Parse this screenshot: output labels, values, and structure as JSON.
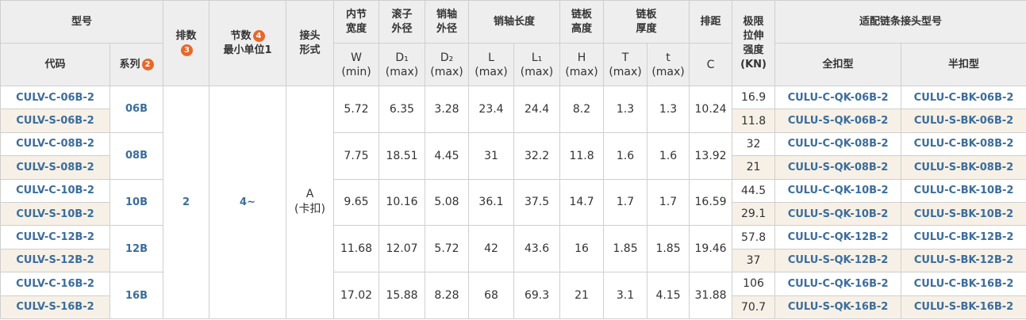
{
  "header": {
    "model": "型号",
    "code": "代码",
    "series": "系列",
    "series_badge": "2",
    "row_count": "排数",
    "row_badge": "3",
    "pitch_count": "节数",
    "pitch_badge": "4",
    "pitch_unit": "最小单位1",
    "joint": [
      "接头",
      "形式"
    ],
    "groups": [
      {
        "name": [
          "内节",
          "宽度"
        ],
        "subs": [
          {
            "symbol": "W",
            "limit": "(min)"
          }
        ]
      },
      {
        "name": [
          "滚子",
          "外径"
        ],
        "subs": [
          {
            "symbol": "D₁",
            "limit": "(max)"
          }
        ]
      },
      {
        "name": [
          "销轴",
          "外径"
        ],
        "subs": [
          {
            "symbol": "D₂",
            "limit": "(max)"
          }
        ]
      },
      {
        "name": [
          "销轴长度"
        ],
        "subs": [
          {
            "symbol": "L",
            "limit": "(max)"
          },
          {
            "symbol": "L₁",
            "limit": "(max)"
          }
        ]
      },
      {
        "name": [
          "链板",
          "高度"
        ],
        "subs": [
          {
            "symbol": "H",
            "limit": "(max)"
          }
        ]
      },
      {
        "name": [
          "链板",
          "厚度"
        ],
        "subs": [
          {
            "symbol": "T",
            "limit": "(max)"
          },
          {
            "symbol": "t",
            "limit": "(max)"
          }
        ]
      },
      {
        "name": [
          "排距"
        ],
        "subs": [
          {
            "symbol": "C"
          }
        ]
      }
    ],
    "strength": [
      "极限",
      "拉伸",
      "强度",
      "(KN)"
    ],
    "adapter": "适配链条接头型号",
    "full": "全扣型",
    "half": "半扣型"
  },
  "table": {
    "row_count": "2",
    "pitch_count": "4~",
    "joint": [
      "A",
      "(卡扣)"
    ],
    "groups": [
      {
        "series": "06B",
        "dims": [
          5.72,
          6.35,
          3.28,
          23.4,
          24.4,
          8.2,
          1.3,
          1.3,
          10.24
        ],
        "items": [
          {
            "code": "CULV-C-06B-2",
            "strength": 16.9,
            "full": "CULU-C-QK-06B-2",
            "half": "CULU-C-BK-06B-2"
          },
          {
            "code": "CULV-S-06B-2",
            "strength": 11.8,
            "full": "CULU-S-QK-06B-2",
            "half": "CULU-S-BK-06B-2"
          }
        ]
      },
      {
        "series": "08B",
        "dims": [
          7.75,
          18.51,
          4.45,
          31,
          32.2,
          11.8,
          1.6,
          1.6,
          13.92
        ],
        "items": [
          {
            "code": "CULV-C-08B-2",
            "strength": 32,
            "full": "CULU-C-QK-08B-2",
            "half": "CULU-C-BK-08B-2"
          },
          {
            "code": "CULV-S-08B-2",
            "strength": 21,
            "full": "CULU-S-QK-08B-2",
            "half": "CULU-S-BK-08B-2"
          }
        ]
      },
      {
        "series": "10B",
        "dims": [
          9.65,
          10.16,
          5.08,
          36.1,
          37.5,
          14.7,
          1.7,
          1.7,
          16.59
        ],
        "items": [
          {
            "code": "CULV-C-10B-2",
            "strength": 44.5,
            "full": "CULU-C-QK-10B-2",
            "half": "CULU-C-BK-10B-2"
          },
          {
            "code": "CULV-S-10B-2",
            "strength": 29.1,
            "full": "CULU-S-QK-10B-2",
            "half": "CULU-S-BK-10B-2"
          }
        ]
      },
      {
        "series": "12B",
        "dims": [
          11.68,
          12.07,
          5.72,
          42,
          43.6,
          16,
          1.85,
          1.85,
          19.46
        ],
        "items": [
          {
            "code": "CULV-C-12B-2",
            "strength": 57.8,
            "full": "CULU-C-QK-12B-2",
            "half": "CULU-C-BK-12B-2"
          },
          {
            "code": "CULV-S-12B-2",
            "strength": 37,
            "full": "CULU-S-QK-12B-2",
            "half": "CULU-S-BK-12B-2"
          }
        ]
      },
      {
        "series": "16B",
        "dims": [
          17.02,
          15.88,
          8.28,
          68,
          69.3,
          21,
          3.1,
          4.15,
          31.88
        ],
        "items": [
          {
            "code": "CULV-C-16B-2",
            "strength": 106,
            "full": "CULU-C-QK-16B-2",
            "half": "CULU-C-BK-16B-2"
          },
          {
            "code": "CULV-S-16B-2",
            "strength": 70.7,
            "full": "CULU-S-QK-16B-2",
            "half": "CULU-S-BK-16B-2"
          }
        ]
      }
    ]
  }
}
